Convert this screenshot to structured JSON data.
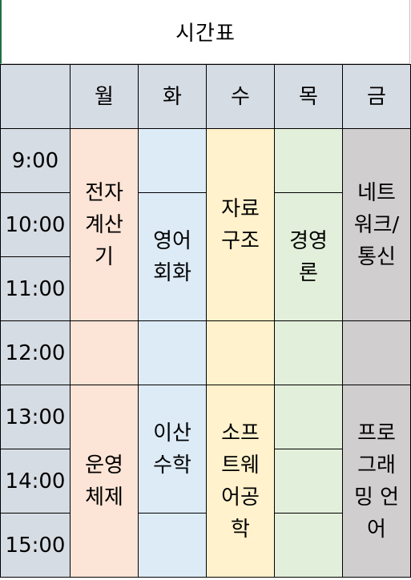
{
  "title": "시간표",
  "header": {
    "corner": "",
    "days": [
      "월",
      "화",
      "수",
      "목",
      "금"
    ]
  },
  "times": [
    "9:00",
    "10:00",
    "11:00",
    "12:00",
    "13:00",
    "14:00",
    "15:00"
  ],
  "subjects": {
    "mon_am": "전자\n계산\n기",
    "tue_am": "영어\n회화",
    "wed_am": "자료\n구조",
    "thu_am": "경영\n론",
    "fri_am": "네트\n워크/\n통신",
    "mon_pm": "운영\n체제",
    "tue_pm": "이산\n수학",
    "wed_pm": "소프\n트웨\n어공\n학",
    "fri_pm": "프로\n그래\n밍 언\n어"
  },
  "colors": {
    "header": "#d6dce4",
    "mon": "#fce4d6",
    "tue": "#ddebf7",
    "wed": "#fff2cc",
    "thu": "#e2efda",
    "fri": "#d0cece",
    "border_left_accent": "#1e7145"
  }
}
